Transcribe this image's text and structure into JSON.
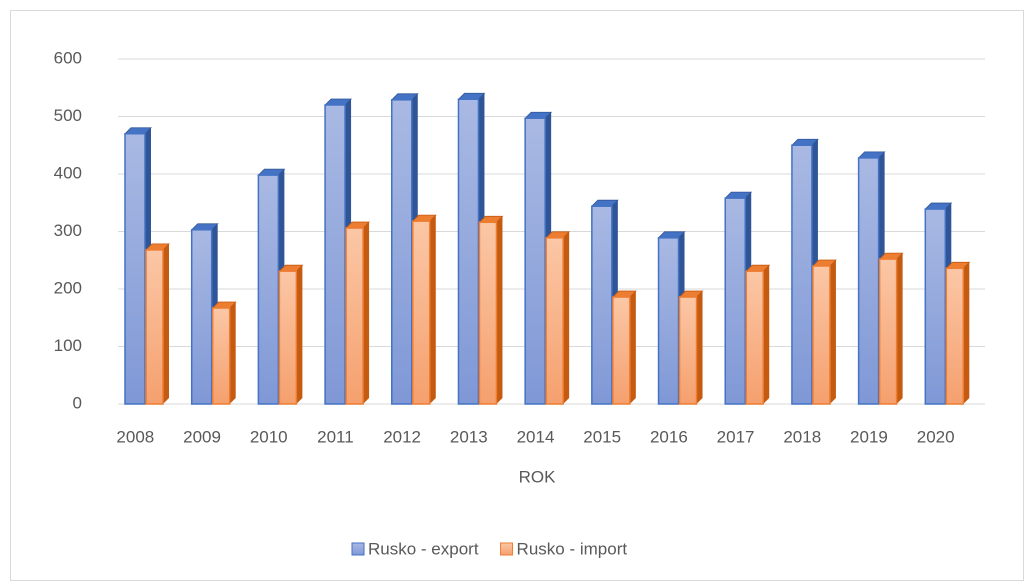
{
  "chart_data": {
    "type": "bar3d",
    "x_label": "ROK",
    "categories": [
      "2008",
      "2009",
      "2010",
      "2011",
      "2012",
      "2013",
      "2014",
      "2015",
      "2016",
      "2017",
      "2018",
      "2019",
      "2020"
    ],
    "series": [
      {
        "name": "Rusko - export",
        "color": "#4472c4",
        "values": [
          470,
          303,
          398,
          520,
          529,
          530,
          497,
          344,
          289,
          358,
          450,
          428,
          339
        ]
      },
      {
        "name": "Rusko - import",
        "color": "#ed7d31",
        "values": [
          268,
          167,
          231,
          306,
          318,
          316,
          289,
          186,
          186,
          231,
          240,
          252,
          236
        ]
      }
    ],
    "ylim": [
      0,
      600
    ],
    "yticks": [
      0,
      100,
      200,
      300,
      400,
      500,
      600
    ],
    "grid": true,
    "legend": "bottom"
  }
}
